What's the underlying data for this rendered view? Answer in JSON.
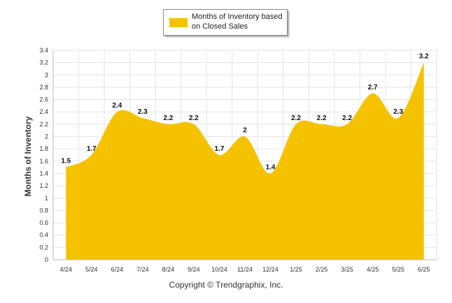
{
  "colors": {
    "fill": "#F5C200",
    "grid": "#e3e3e3",
    "axis": "#bbbbbb",
    "text": "#333333"
  },
  "legend": {
    "label": "Months of Inventory based on Closed Sales",
    "position": "top-center"
  },
  "footer": {
    "copyright": "Copyright © Trendgraphix, Inc."
  },
  "chart_data": {
    "type": "area",
    "title": "",
    "xlabel": "",
    "ylabel": "Months of Inventory",
    "ylim": [
      0,
      3.4
    ],
    "ytick_step": 0.2,
    "grid": true,
    "legend_position": "top-center",
    "categories": [
      "4/24",
      "5/24",
      "6/24",
      "7/24",
      "8/24",
      "9/24",
      "10/24",
      "11/24",
      "12/24",
      "1/25",
      "2/25",
      "3/25",
      "4/25",
      "5/25",
      "6/25"
    ],
    "series": [
      {
        "name": "Months of Inventory based on Closed Sales",
        "values": [
          1.5,
          1.7,
          2.4,
          2.3,
          2.2,
          2.2,
          1.7,
          2,
          1.4,
          2.2,
          2.2,
          2.2,
          2.7,
          2.3,
          3.2
        ]
      }
    ]
  }
}
